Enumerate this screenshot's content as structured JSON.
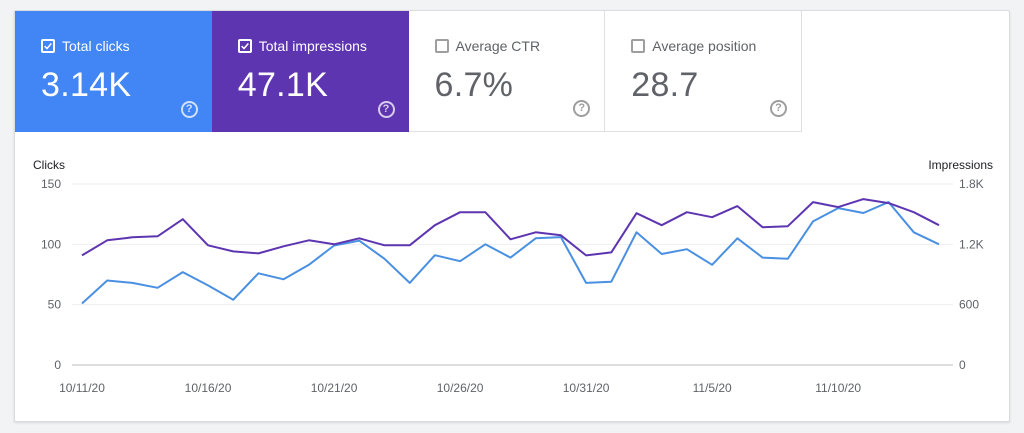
{
  "metrics": [
    {
      "label": "Total clicks",
      "value": "3.14K",
      "checked": true,
      "color": "#4285f4"
    },
    {
      "label": "Total impressions",
      "value": "47.1K",
      "checked": true,
      "color": "#5e35b1"
    },
    {
      "label": "Average CTR",
      "value": "6.7%",
      "checked": false,
      "color": "#ffffff"
    },
    {
      "label": "Average position",
      "value": "28.7",
      "checked": false,
      "color": "#ffffff"
    }
  ],
  "help_glyph": "?",
  "chart_data": {
    "type": "line",
    "left_axis_label": "Clicks",
    "right_axis_label": "Impressions",
    "left_ylim": [
      0,
      150
    ],
    "right_ylim": [
      0,
      1800
    ],
    "left_ticks": [
      "0",
      "50",
      "100",
      "150"
    ],
    "right_ticks": [
      "0",
      "600",
      "1.2K",
      "1.8K"
    ],
    "x_labels": [
      {
        "index": 0,
        "label": "10/11/20"
      },
      {
        "index": 5,
        "label": "10/16/20"
      },
      {
        "index": 10,
        "label": "10/21/20"
      },
      {
        "index": 15,
        "label": "10/26/20"
      },
      {
        "index": 20,
        "label": "10/31/20"
      },
      {
        "index": 25,
        "label": "11/5/20"
      },
      {
        "index": 30,
        "label": "11/10/20"
      }
    ],
    "grid": true,
    "series": [
      {
        "name": "Total clicks",
        "axis": "left",
        "color": "#4a90e2",
        "values": [
          51,
          70,
          68,
          64,
          77,
          66,
          54,
          76,
          71,
          83,
          99,
          103,
          88,
          68,
          91,
          86,
          100,
          89,
          105,
          106,
          68,
          69,
          110,
          92,
          96,
          83,
          105,
          89,
          88,
          119,
          130,
          126,
          135,
          110,
          100
        ]
      },
      {
        "name": "Total impressions",
        "axis": "right",
        "color": "#5e35b1",
        "values": [
          1090,
          1240,
          1270,
          1280,
          1450,
          1190,
          1130,
          1110,
          1180,
          1240,
          1200,
          1260,
          1190,
          1190,
          1390,
          1520,
          1520,
          1250,
          1320,
          1290,
          1090,
          1120,
          1510,
          1390,
          1520,
          1470,
          1580,
          1370,
          1380,
          1620,
          1570,
          1650,
          1610,
          1520,
          1390
        ]
      }
    ]
  }
}
